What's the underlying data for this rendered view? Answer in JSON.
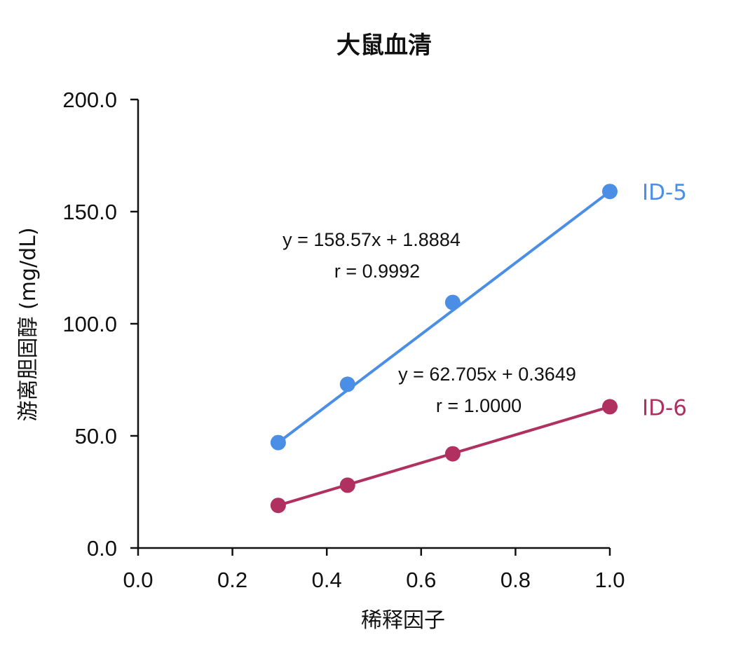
{
  "chart_data": {
    "type": "line",
    "title": "大鼠血清",
    "xlabel": "稀释因子",
    "ylabel": "游离胆固醇 (mg/dL)",
    "xlim": [
      0.0,
      1.0
    ],
    "ylim": [
      0.0,
      200.0
    ],
    "x_ticks": [
      "0.0",
      "0.2",
      "0.4",
      "0.6",
      "0.8",
      "1.0"
    ],
    "y_ticks": [
      "0.0",
      "50.0",
      "100.0",
      "150.0",
      "200.0"
    ],
    "grid": false,
    "legend": "none",
    "series": [
      {
        "name": "ID-5",
        "color": "#4a8ee5",
        "x": [
          0.297,
          0.444,
          0.667,
          1.0
        ],
        "values": [
          47.0,
          73.0,
          109.5,
          159.0
        ],
        "equation": "y = 158.57x + 1.8884",
        "r": "r = 0.9992"
      },
      {
        "name": "ID-6",
        "color": "#b03060",
        "x": [
          0.297,
          0.444,
          0.667,
          1.0
        ],
        "values": [
          19.0,
          28.0,
          42.0,
          63.0
        ],
        "equation": "y = 62.705x + 0.3649",
        "r": "r = 1.0000"
      }
    ]
  }
}
